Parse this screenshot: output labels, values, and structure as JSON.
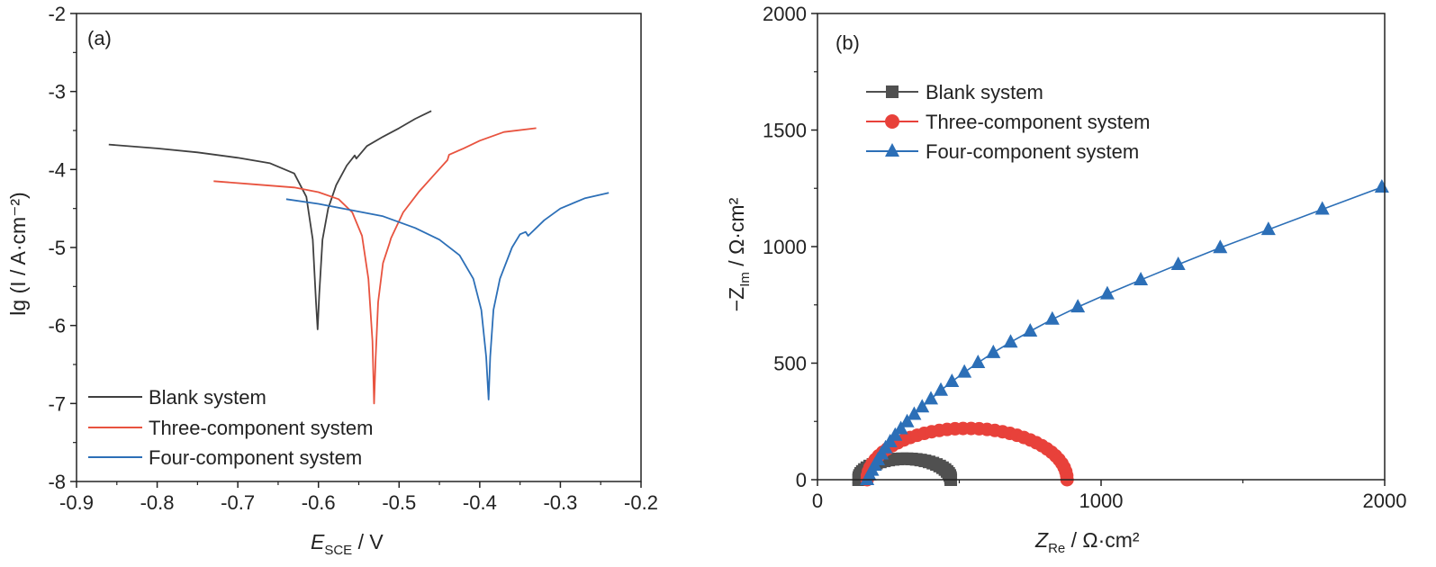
{
  "chart_data": [
    {
      "type": "line",
      "panel_label": "(a)",
      "xlabel": {
        "main": "E",
        "sub": "SCE",
        "tail": " / V"
      },
      "ylabel": "lg (I / A·cm⁻²)",
      "xlim": [
        -0.9,
        -0.2
      ],
      "ylim": [
        -8,
        -2
      ],
      "xticks": [
        -0.9,
        -0.8,
        -0.7,
        -0.6,
        -0.5,
        -0.4,
        -0.3,
        -0.2
      ],
      "xtick_labels": [
        "-0.9",
        "-0.8",
        "-0.7",
        "-0.6",
        "-0.5",
        "-0.4",
        "-0.3",
        "-0.2"
      ],
      "yticks": [
        -8,
        -7,
        -6,
        -5,
        -4,
        -3,
        -2
      ],
      "ytick_labels": [
        "-8",
        "-7",
        "-6",
        "-5",
        "-4",
        "-3",
        "-2"
      ],
      "grid": false,
      "legend_position": "bottom-left",
      "series": [
        {
          "name": "Blank system",
          "color": "#404040",
          "x": [
            -0.86,
            -0.8,
            -0.75,
            -0.7,
            -0.66,
            -0.63,
            -0.615,
            -0.607,
            -0.603,
            -0.601,
            -0.599,
            -0.595,
            -0.588,
            -0.578,
            -0.565,
            -0.555,
            -0.553,
            -0.54,
            -0.52,
            -0.5,
            -0.48,
            -0.46
          ],
          "y": [
            -3.68,
            -3.73,
            -3.78,
            -3.85,
            -3.92,
            -4.05,
            -4.35,
            -4.9,
            -5.7,
            -6.05,
            -5.6,
            -4.9,
            -4.5,
            -4.2,
            -3.95,
            -3.82,
            -3.86,
            -3.7,
            -3.58,
            -3.47,
            -3.35,
            -3.25
          ]
        },
        {
          "name": "Three-component system",
          "color": "#e8533f",
          "x": [
            -0.73,
            -0.68,
            -0.63,
            -0.6,
            -0.575,
            -0.558,
            -0.546,
            -0.538,
            -0.533,
            -0.531,
            -0.529,
            -0.526,
            -0.52,
            -0.512,
            -0.51,
            -0.495,
            -0.475,
            -0.455,
            -0.44,
            -0.438,
            -0.42,
            -0.4,
            -0.37,
            -0.33
          ],
          "y": [
            -4.15,
            -4.19,
            -4.23,
            -4.29,
            -4.38,
            -4.55,
            -4.85,
            -5.4,
            -6.2,
            -7.0,
            -6.4,
            -5.7,
            -5.2,
            -4.95,
            -4.88,
            -4.55,
            -4.28,
            -4.05,
            -3.88,
            -3.81,
            -3.73,
            -3.63,
            -3.52,
            -3.47
          ]
        },
        {
          "name": "Four-component system",
          "color": "#2c6fb7",
          "x": [
            -0.64,
            -0.6,
            -0.56,
            -0.52,
            -0.48,
            -0.45,
            -0.425,
            -0.408,
            -0.398,
            -0.392,
            -0.389,
            -0.387,
            -0.383,
            -0.375,
            -0.36,
            -0.35,
            -0.343,
            -0.34,
            -0.32,
            -0.3,
            -0.27,
            -0.24
          ],
          "y": [
            -4.38,
            -4.44,
            -4.52,
            -4.6,
            -4.75,
            -4.9,
            -5.1,
            -5.4,
            -5.8,
            -6.4,
            -6.95,
            -6.4,
            -5.8,
            -5.4,
            -5.0,
            -4.83,
            -4.8,
            -4.85,
            -4.65,
            -4.5,
            -4.37,
            -4.3
          ]
        }
      ]
    },
    {
      "type": "scatter",
      "panel_label": "(b)",
      "xlabel": {
        "main": "Z",
        "sub": "Re",
        "tail": " / Ω·cm²"
      },
      "ylabel": {
        "prefix": "−Z",
        "sub": "Im",
        "tail": " / Ω·cm²"
      },
      "xlim": [
        0,
        2000
      ],
      "ylim": [
        0,
        2000
      ],
      "xticks": [
        0,
        1000,
        2000
      ],
      "xtick_labels": [
        "0",
        "1000",
        "2000"
      ],
      "yticks": [
        0,
        500,
        1000,
        1500,
        2000
      ],
      "ytick_labels": [
        "0",
        "500",
        "1000",
        "1500",
        "2000"
      ],
      "grid": false,
      "legend_position": "top-left",
      "series": [
        {
          "name": "Blank system",
          "color": "#505050",
          "marker": "square",
          "arc": {
            "x_start": 145,
            "x_end": 470,
            "peak": 90,
            "points": 32
          }
        },
        {
          "name": "Three-component system",
          "color": "#e8413a",
          "marker": "circle",
          "arc": {
            "x_start": 175,
            "x_end": 880,
            "peak": 220,
            "points": 40
          }
        },
        {
          "name": "Four-component system",
          "color": "#2c6fb7",
          "marker": "triangle",
          "x": [
            175,
            183,
            192,
            202,
            213,
            226,
            240,
            256,
            274,
            294,
            316,
            341,
            369,
            400,
            435,
            474,
            518,
            566,
            620,
            681,
            750,
            828,
            918,
            1022,
            1140,
            1272,
            1420,
            1590,
            1780,
            1990
          ],
          "y": [
            0,
            20,
            40,
            62,
            85,
            110,
            136,
            162,
            190,
            218,
            248,
            280,
            312,
            346,
            383,
            421,
            461,
            502,
            545,
            590,
            637,
            688,
            741,
            797,
            857,
            923,
            995,
            1073,
            1160,
            1255
          ]
        }
      ]
    }
  ]
}
